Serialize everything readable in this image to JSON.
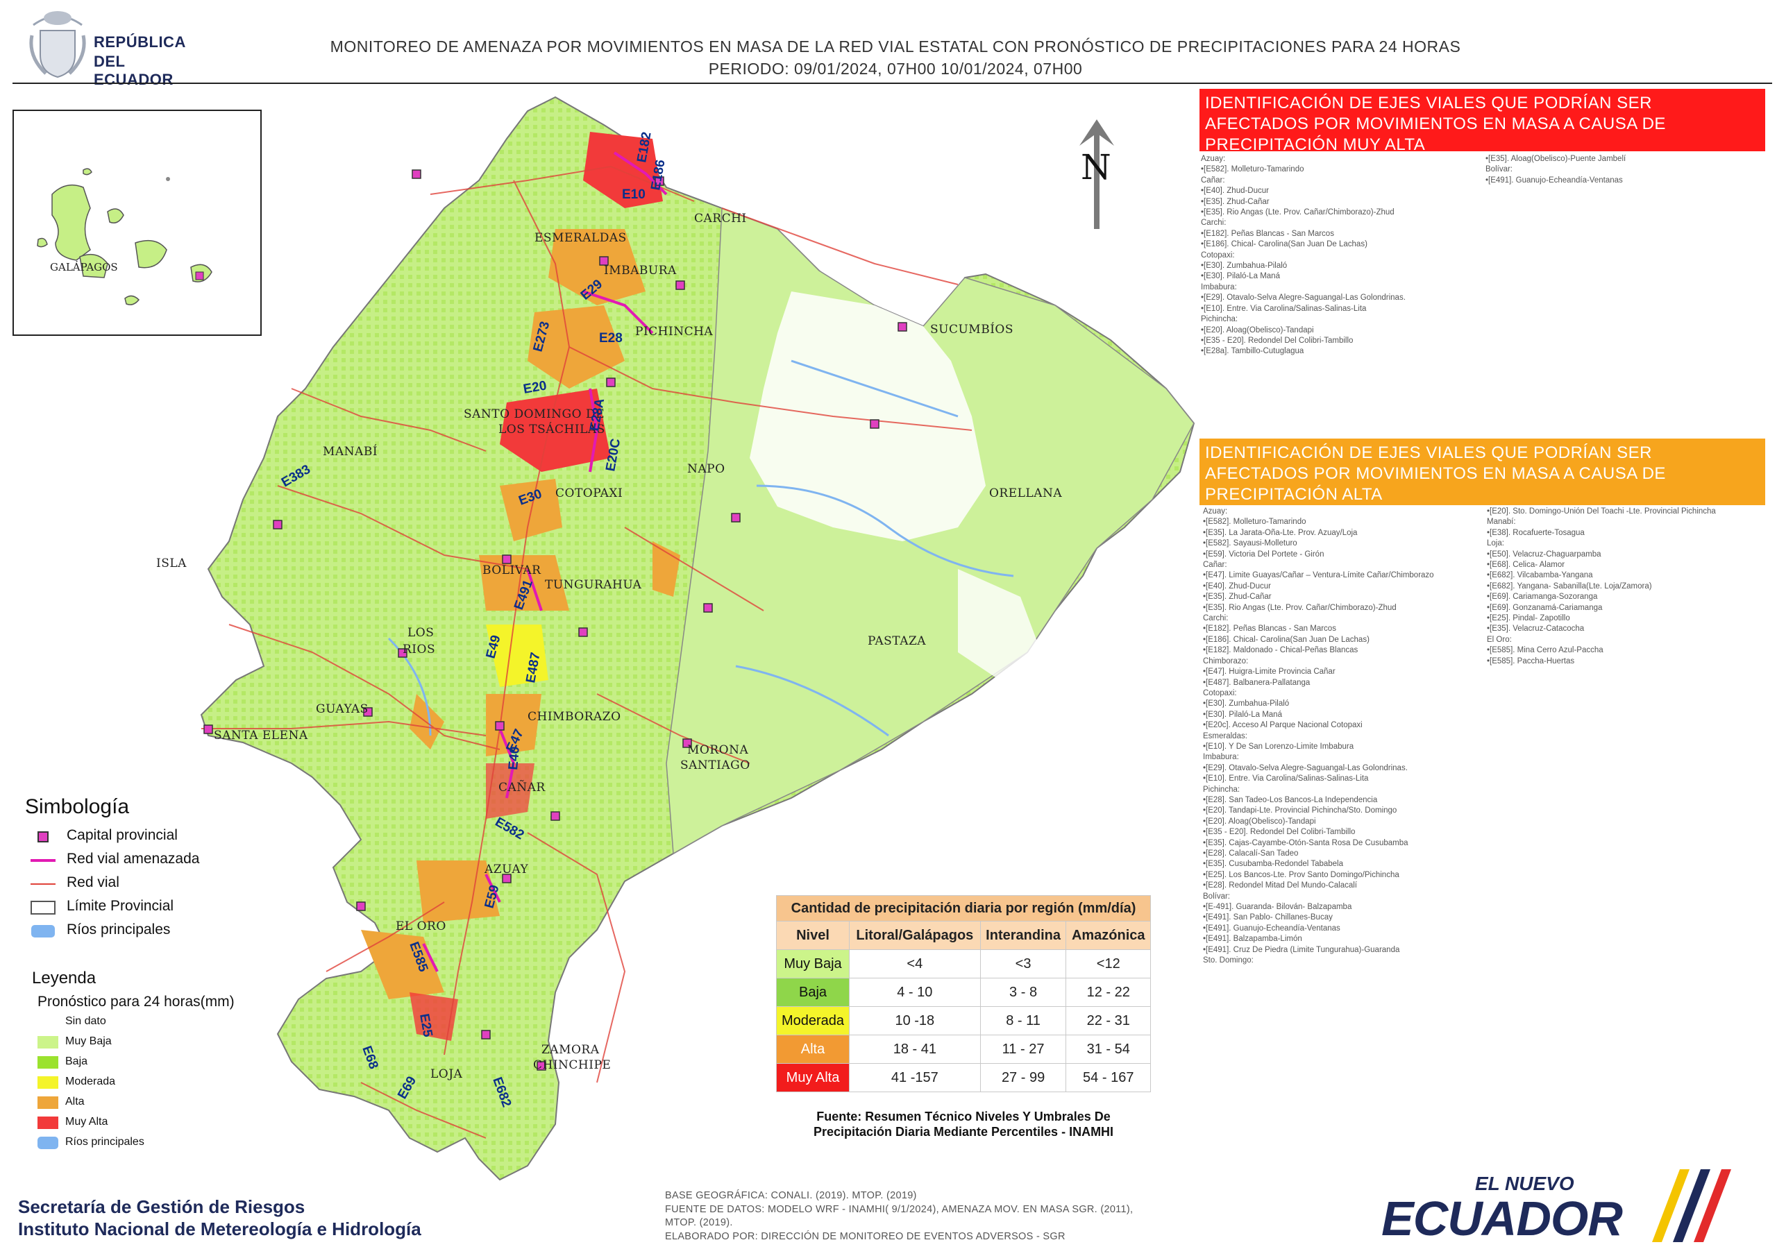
{
  "header": {
    "logo_line1": "REPÚBLICA",
    "logo_line2": "DEL ECUADOR",
    "title": "MONITOREO DE AMENAZA POR MOVIMIENTOS EN MASA DE LA RED VIAL  ESTATAL  CON PRONÓSTICO  DE  PRECIPITACIONES PARA 24 HORAS",
    "period": "PERIODO: 09/01/2024, 07H00 10/01/2024, 07H00"
  },
  "map": {
    "north_label": "N",
    "inset_label": "GALÁPAGOS",
    "provinces": [
      "CARCHI",
      "ESMERALDAS",
      "IMBABURA",
      "PICHINCHA",
      "SUCUMBÍOS",
      "SANTO DOMINGO DE",
      "LOS TSÁCHILAS",
      "MANABÍ",
      "NAPO",
      "ORELLANA",
      "COTOPAXI",
      "BOLIVAR",
      "TUNGURAHUA",
      "LOS",
      "RIOS",
      "PASTAZA",
      "GUAYAS",
      "SANTA ELENA",
      "CHIMBORAZO",
      "MORONA",
      "SANTIAGO",
      "CAÑAR",
      "AZUAY",
      "EL ORO",
      "ZAMORA",
      "CHINCHIPE",
      "LOJA",
      "ISLA"
    ],
    "roads": [
      "E10",
      "E182",
      "E186",
      "E29",
      "E28",
      "E273",
      "E20",
      "E30",
      "E28A",
      "E20C",
      "E383",
      "E491",
      "E49",
      "E487",
      "E47",
      "E40",
      "E582",
      "E59",
      "E585",
      "E25",
      "E68",
      "E69",
      "E682"
    ]
  },
  "panel_muy_alta": {
    "heading": "IDENTIFICACIÓN DE EJES VIALES QUE PODRÍAN SER AFECTADOS POR MOVIMIENTOS EN MASA A CAUSA DE PRECIPITACIÓN MUY ALTA",
    "col1": [
      "Azuay:",
      "•[E582]. Molleturo-Tamarindo",
      "Cañar:",
      "•[E40]. Zhud-Ducur",
      "•[E35]. Zhud-Cañar",
      "•[E35]. Rio Angas (Lte. Prov. Cañar/Chimborazo)-Zhud",
      "Carchi:",
      "•[E182]. Peñas Blancas - San Marcos",
      "•[E186]. Chical- Carolina(San Juan De Lachas)",
      "Cotopaxi:",
      "•[E30]. Zumbahua-Pilaló",
      "•[E30]. Pilaló-La Maná",
      "Imbabura:",
      "•[E29]. Otavalo-Selva Alegre-Saguangal-Las Golondrinas.",
      "•[E10]. Entre. Via Carolina/Salinas-Salinas-Lita",
      "Pichincha:",
      "•[E20]. Aloag(Obelisco)-Tandapi",
      "•[E35 - E20]. Redondel Del Colibri-Tambillo",
      "•[E28a]. Tambillo-Cutuglagua"
    ],
    "col2": [
      "•[E35]. Aloag(Obelisco)-Puente Jambelí",
      "Bolívar:",
      "•[E491]. Guanujo-Echeandía-Ventanas"
    ]
  },
  "panel_alta": {
    "heading": "IDENTIFICACIÓN DE EJES VIALES QUE PODRÍAN SER AFECTADOS POR MOVIMIENTOS EN MASA A CAUSA DE PRECIPITACIÓN  ALTA",
    "col1": [
      "Azuay:",
      "•[E582]. Molleturo-Tamarindo",
      "•[E35]. La Jarata-Oña-Lte. Prov. Azuay/Loja",
      "•[E582]. Sayausi-Molleturo",
      "•[E59]. Victoria Del Portete - Girón",
      "Cañar:",
      "•[E47]. Limite Guayas/Cañar – Ventura-Límite Cañar/Chimborazo",
      "•[E40]. Zhud-Ducur",
      "•[E35]. Zhud-Cañar",
      "•[E35]. Rio Angas (Lte. Prov. Cañar/Chimborazo)-Zhud",
      "Carchi:",
      "•[E182]. Peñas Blancas - San Marcos",
      "•[E186]. Chical- Carolina(San Juan De Lachas)",
      "•[E182]. Maldonado - Chical-Peñas Blancas",
      "Chimborazo:",
      "•[E47]. Huigra-Limite Provincia Cañar",
      "•[E487]. Balbanera-Pallatanga",
      "Cotopaxi:",
      "•[E30]. Zumbahua-Pilaló",
      "•[E30]. Pilaló-La Maná",
      "•[E20c]. Acceso Al Parque Nacional Cotopaxi",
      "Esmeraldas:",
      "•[E10]. Y De San Lorenzo-Limite Imbabura",
      "Imbabura:",
      "•[E29]. Otavalo-Selva Alegre-Saguangal-Las Golondrinas.",
      "•[E10]. Entre. Via Carolina/Salinas-Salinas-Lita",
      "Pichincha:",
      "•[E28]. San Tadeo-Los Bancos-La Independencia",
      "•[E20]. Tandapi-Lte. Provincial Pichincha/Sto. Domingo",
      "•[E20]. Aloag(Obelisco)-Tandapi",
      "•[E35 - E20]. Redondel Del Colibri-Tambillo",
      "•[E35]. Cajas-Cayambe-Otón-Santa Rosa De Cusubamba",
      "•[E28]. Calacalí-San Tadeo",
      "•[E35]. Cusubamba-Redondel Tababela",
      "•[E25]. Los Bancos-Lte. Prov Santo Domingo/Pichincha",
      "•[E28]. Redondel Mitad Del Mundo-Calacalí",
      "Bolívar:",
      "•[E-491]. Guaranda- Bilován- Balzapamba",
      "•[E491]. San Pablo- Chillanes-Bucay",
      "•[E491]. Guanujo-Echeandía-Ventanas",
      "•[E491]. Balzapamba-Limón",
      "•[E491]. Cruz De Piedra (Limite Tungurahua)-Guaranda",
      "Sto. Domingo:"
    ],
    "col2": [
      "•[E20]. Sto. Domingo-Unión Del Toachi -Lte. Provincial Pichincha",
      "Manabí:",
      "•[E38]. Rocafuerte-Tosagua",
      "Loja:",
      "•[E50]. Velacruz-Chaguarpamba",
      "•[E68]. Celica- Alamor",
      "•[E682]. Vilcabamba-Yangana",
      "•[E682]. Yangana- Sabanilla(Lte. Loja/Zamora)",
      "•[E69]. Cariamanga-Sozoranga",
      "•[E69]. Gonzanamá-Cariamanga",
      "•[E25]. Pindal- Zapotillo",
      "•[E35]. Velacruz-Catacocha",
      "El Oro:",
      "•[E585]. Mina Cerro Azul-Paccha",
      "•[E585]. Paccha-Huertas"
    ]
  },
  "simbologia": {
    "title": "Simbología",
    "items": [
      "Capital provincial",
      "Red vial amenazada",
      "Red vial",
      "Límite Provincial",
      "Ríos principales"
    ]
  },
  "leyenda": {
    "title": "Leyenda",
    "subtitle": "Pronóstico para 24 horas(mm)",
    "items": [
      {
        "label": "Sin dato",
        "color": "#ffffff"
      },
      {
        "label": "Muy Baja",
        "color": "#ccf48a"
      },
      {
        "label": "Baja",
        "color": "#9be22e"
      },
      {
        "label": "Moderada",
        "color": "#f4f42a"
      },
      {
        "label": "Alta",
        "color": "#eea63a"
      },
      {
        "label": "Muy Alta",
        "color": "#f23a3a"
      },
      {
        "label": "Ríos principales",
        "color": "#7fb4f0"
      }
    ]
  },
  "precip_table": {
    "caption": "Cantidad de precipitación diaria por región (mm/día)",
    "headers": [
      "Nivel",
      "Litoral/Galápagos",
      "Interandina",
      "Amazónica"
    ],
    "rows": [
      {
        "nivel": "Muy Baja",
        "color": "#ccf48a",
        "litoral": "<4",
        "interandina": "<3",
        "amazonica": "<12"
      },
      {
        "nivel": "Baja",
        "color": "#8fd64a",
        "litoral": "4 - 10",
        "interandina": "3 - 8",
        "amazonica": "12 - 22"
      },
      {
        "nivel": "Moderada",
        "color": "#f4f42a",
        "litoral": "10 -18",
        "interandina": "8 - 11",
        "amazonica": "22 - 31"
      },
      {
        "nivel": "Alta",
        "color": "#f29a33",
        "litoral": "18 - 41",
        "interandina": "11 - 27",
        "amazonica": "31 - 54"
      },
      {
        "nivel": "Muy Alta",
        "color": "#f21c1c",
        "litoral": "41 -157",
        "interandina": "27 - 99",
        "amazonica": "54 - 167"
      }
    ],
    "source_line1": "Fuente: Resumen Técnico Niveles Y Umbrales De",
    "source_line2": "Precipitación Diaria Mediante Percentiles - INAMHI"
  },
  "footer": {
    "org1": "Secretaría de Gestión de Riesgos",
    "org2": "Instituto Nacional de Metereología e Hidrología",
    "base1": "BASE GEOGRÁFICA: CONALI. (2019). MTOP. (2019)",
    "base2": "FUENTE DE DATOS: MODELO WRF - INAMHI( 9/1/2024),  AMENAZA MOV. EN MASA SGR. (2011),",
    "base3": "MTOP. (2019).",
    "base4": "ELABORADO POR: DIRECCIÓN DE MONITOREO DE EVENTOS ADVERSOS - SGR",
    "brand_small": "EL NUEVO",
    "brand_big": "ECUADOR"
  }
}
